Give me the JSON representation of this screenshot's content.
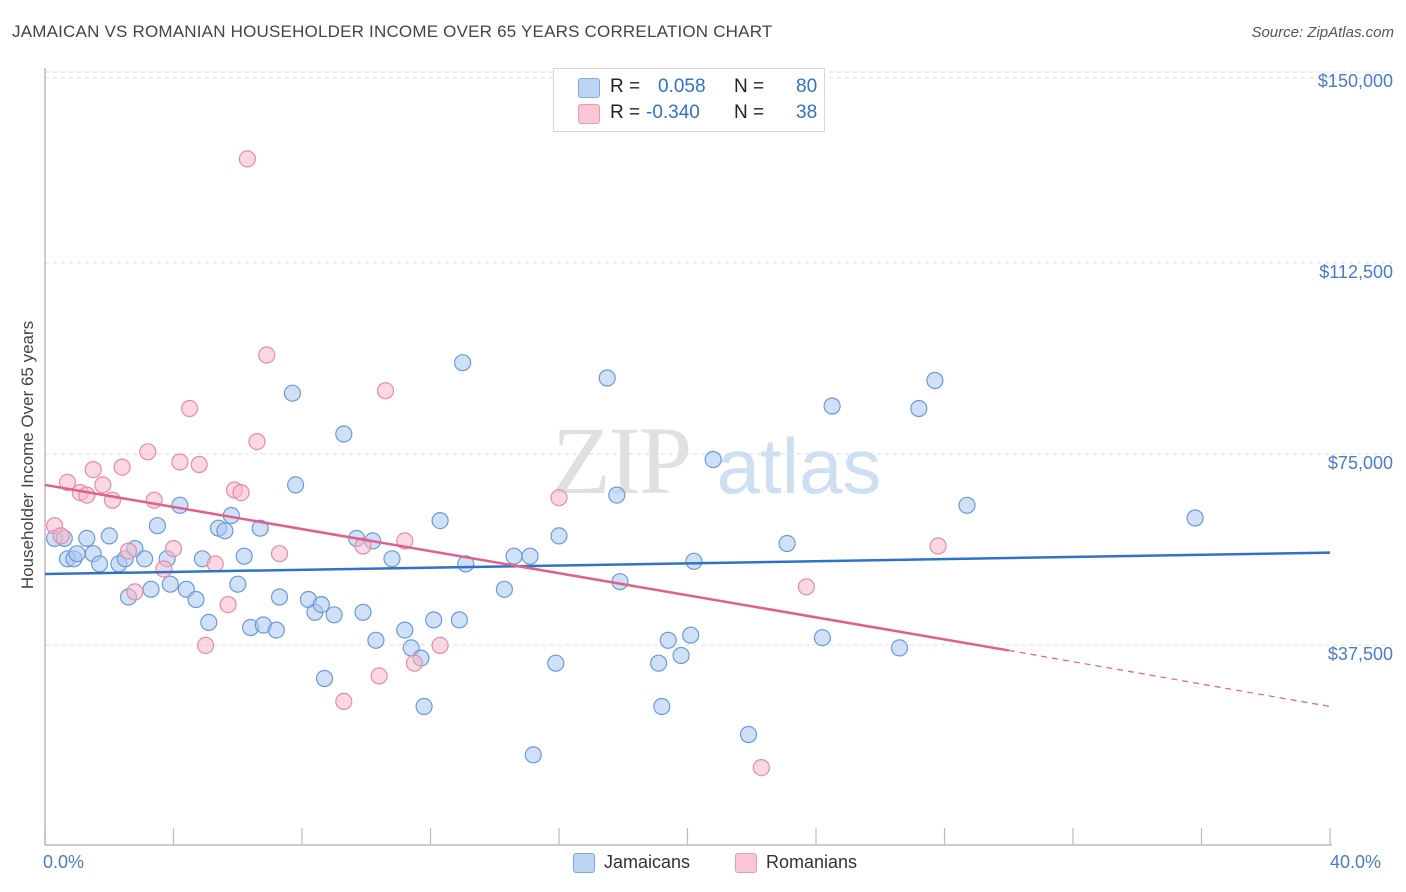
{
  "title": "JAMAICAN VS ROMANIAN HOUSEHOLDER INCOME OVER 65 YEARS CORRELATION CHART",
  "source": "Source: ZipAtlas.com",
  "watermark": {
    "zip": "ZIP",
    "atlas": "atlas"
  },
  "legend": {
    "rows": [
      {
        "r_label": "R =",
        "r_value": "0.058",
        "n_label": "N =",
        "n_value": "80",
        "color": "#a9c7ef"
      },
      {
        "r_label": "R =",
        "r_value": "-0.340",
        "n_label": "N =",
        "n_value": "38",
        "color": "#f5b8cb"
      }
    ]
  },
  "bottom_legend": [
    {
      "label": "Jamaicans",
      "color": "#a9c7ef"
    },
    {
      "label": "Romanians",
      "color": "#f5b8cb"
    }
  ],
  "chart_data": {
    "type": "scatter",
    "ylabel": "Householder Income Over 65 years",
    "xlabel": "",
    "xlim": [
      0,
      40
    ],
    "ylim": [
      0,
      155000
    ],
    "x_tick_labels": [
      "0.0%",
      "40.0%"
    ],
    "y_ticks": [
      37500,
      75000,
      112500,
      150000
    ],
    "y_tick_labels": [
      "$37,500",
      "$75,000",
      "$112,500",
      "$150,000"
    ],
    "grid": "horizontal dashed",
    "series": [
      {
        "name": "Jamaicans",
        "color": "#a9c7ef",
        "stroke": "#6a9bd8",
        "trend": {
          "x": [
            0,
            40
          ],
          "y": [
            53000,
            57200
          ],
          "color": "#2f72c9"
        },
        "points": [
          [
            0.3,
            60000
          ],
          [
            0.6,
            60000
          ],
          [
            0.7,
            56000
          ],
          [
            0.9,
            56000
          ],
          [
            1.0,
            57000
          ],
          [
            1.3,
            60000
          ],
          [
            1.5,
            57000
          ],
          [
            1.7,
            55000
          ],
          [
            2.0,
            60500
          ],
          [
            2.3,
            55000
          ],
          [
            2.5,
            56000
          ],
          [
            2.6,
            48500
          ],
          [
            2.8,
            58000
          ],
          [
            3.1,
            56000
          ],
          [
            3.3,
            50000
          ],
          [
            3.5,
            62500
          ],
          [
            3.8,
            56000
          ],
          [
            3.9,
            51000
          ],
          [
            4.2,
            66500
          ],
          [
            4.4,
            50000
          ],
          [
            4.7,
            48000
          ],
          [
            4.9,
            56000
          ],
          [
            5.1,
            43500
          ],
          [
            5.4,
            62000
          ],
          [
            5.6,
            61500
          ],
          [
            5.8,
            64500
          ],
          [
            6.0,
            51000
          ],
          [
            6.2,
            56500
          ],
          [
            6.4,
            42500
          ],
          [
            6.7,
            62000
          ],
          [
            6.8,
            43000
          ],
          [
            7.2,
            42000
          ],
          [
            7.3,
            48500
          ],
          [
            7.7,
            88500
          ],
          [
            7.8,
            70500
          ],
          [
            8.2,
            48000
          ],
          [
            8.4,
            45500
          ],
          [
            8.6,
            47000
          ],
          [
            8.7,
            32500
          ],
          [
            9.0,
            45000
          ],
          [
            9.3,
            80500
          ],
          [
            9.7,
            60000
          ],
          [
            9.9,
            45500
          ],
          [
            10.2,
            59500
          ],
          [
            10.3,
            40000
          ],
          [
            10.8,
            56000
          ],
          [
            11.2,
            42000
          ],
          [
            11.4,
            38500
          ],
          [
            11.7,
            36500
          ],
          [
            11.8,
            27000
          ],
          [
            12.1,
            44000
          ],
          [
            12.3,
            63500
          ],
          [
            12.9,
            44000
          ],
          [
            13.1,
            55000
          ],
          [
            13.0,
            94500
          ],
          [
            14.3,
            50000
          ],
          [
            14.6,
            56500
          ],
          [
            15.1,
            56500
          ],
          [
            15.2,
            17500
          ],
          [
            15.9,
            35500
          ],
          [
            16.0,
            60500
          ],
          [
            17.5,
            91500
          ],
          [
            17.8,
            68500
          ],
          [
            17.9,
            51500
          ],
          [
            19.1,
            35500
          ],
          [
            19.2,
            27000
          ],
          [
            19.4,
            40000
          ],
          [
            19.8,
            37000
          ],
          [
            20.1,
            41000
          ],
          [
            20.2,
            55500
          ],
          [
            20.8,
            75500
          ],
          [
            21.9,
            21500
          ],
          [
            23.1,
            59000
          ],
          [
            24.2,
            40500
          ],
          [
            24.5,
            86000
          ],
          [
            26.6,
            38500
          ],
          [
            27.2,
            85500
          ],
          [
            27.7,
            91000
          ],
          [
            28.7,
            66500
          ],
          [
            35.8,
            64000
          ]
        ]
      },
      {
        "name": "Romanians",
        "color": "#f5b8cb",
        "stroke": "#e88aa8",
        "trend": {
          "x": [
            0,
            30
          ],
          "y": [
            70500,
            38000
          ],
          "dash_to": [
            40,
            27000
          ],
          "color": "#e0608a"
        },
        "points": [
          [
            0.3,
            62500
          ],
          [
            0.5,
            60500
          ],
          [
            0.7,
            71000
          ],
          [
            1.1,
            69000
          ],
          [
            1.3,
            68500
          ],
          [
            1.5,
            73500
          ],
          [
            1.8,
            70500
          ],
          [
            2.1,
            67500
          ],
          [
            2.4,
            74000
          ],
          [
            2.6,
            57500
          ],
          [
            2.8,
            49500
          ],
          [
            3.2,
            77000
          ],
          [
            3.4,
            67500
          ],
          [
            3.7,
            54000
          ],
          [
            4.0,
            58000
          ],
          [
            4.2,
            75000
          ],
          [
            4.5,
            85500
          ],
          [
            4.8,
            74500
          ],
          [
            5.0,
            39000
          ],
          [
            5.3,
            55000
          ],
          [
            5.7,
            47000
          ],
          [
            5.9,
            69500
          ],
          [
            6.1,
            69000
          ],
          [
            6.3,
            134500
          ],
          [
            6.6,
            79000
          ],
          [
            6.9,
            96000
          ],
          [
            7.3,
            57000
          ],
          [
            9.3,
            28000
          ],
          [
            9.9,
            58500
          ],
          [
            10.4,
            33000
          ],
          [
            10.6,
            89000
          ],
          [
            11.2,
            59500
          ],
          [
            11.5,
            35500
          ],
          [
            12.3,
            39000
          ],
          [
            16.0,
            68000
          ],
          [
            22.3,
            15000
          ],
          [
            23.7,
            50500
          ],
          [
            27.8,
            58500
          ]
        ]
      }
    ]
  }
}
